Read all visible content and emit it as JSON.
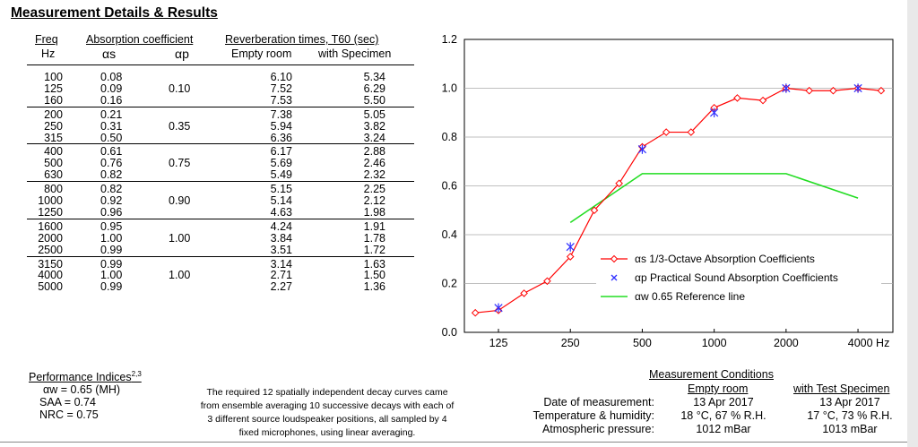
{
  "title": "Measurement Details & Results",
  "table": {
    "header_freq": "Freq",
    "header_freq_unit": "Hz",
    "header_abs": "Absorption coefficient",
    "header_as": "αs",
    "header_ap": "αp",
    "header_rev": "Reverberation times, T60 (sec)",
    "header_empty": "Empty room",
    "header_spec": "with Specimen",
    "groups": [
      {
        "ap": "0.10",
        "rows": [
          [
            "100",
            "0.08",
            "6.10",
            "5.34"
          ],
          [
            "125",
            "0.09",
            "7.52",
            "6.29"
          ],
          [
            "160",
            "0.16",
            "7.53",
            "5.50"
          ]
        ]
      },
      {
        "ap": "0.35",
        "rows": [
          [
            "200",
            "0.21",
            "7.38",
            "5.05"
          ],
          [
            "250",
            "0.31",
            "5.94",
            "3.82"
          ],
          [
            "315",
            "0.50",
            "6.36",
            "3.24"
          ]
        ]
      },
      {
        "ap": "0.75",
        "rows": [
          [
            "400",
            "0.61",
            "6.17",
            "2.88"
          ],
          [
            "500",
            "0.76",
            "5.69",
            "2.46"
          ],
          [
            "630",
            "0.82",
            "5.49",
            "2.32"
          ]
        ]
      },
      {
        "ap": "0.90",
        "rows": [
          [
            "800",
            "0.82",
            "5.15",
            "2.25"
          ],
          [
            "1000",
            "0.92",
            "5.14",
            "2.12"
          ],
          [
            "1250",
            "0.96",
            "4.63",
            "1.98"
          ]
        ]
      },
      {
        "ap": "1.00",
        "rows": [
          [
            "1600",
            "0.95",
            "4.24",
            "1.91"
          ],
          [
            "2000",
            "1.00",
            "3.84",
            "1.78"
          ],
          [
            "2500",
            "0.99",
            "3.51",
            "1.72"
          ]
        ]
      },
      {
        "ap": "1.00",
        "rows": [
          [
            "3150",
            "0.99",
            "3.14",
            "1.63"
          ],
          [
            "4000",
            "1.00",
            "2.71",
            "1.50"
          ],
          [
            "5000",
            "0.99",
            "2.27",
            "1.36"
          ]
        ]
      }
    ]
  },
  "performance": {
    "title": "Performance Indices",
    "title_sup": "2,3",
    "aw": "αw = 0.65 (MH)",
    "saa": "SAA = 0.74",
    "nrc": "NRC = 0.75"
  },
  "note": {
    "lines": [
      "The required 12 spatially independent decay curves came",
      "from ensemble averaging 10 successive decays with each of",
      "3 different source loudspeaker positions, all sampled by 4",
      "fixed microphones, using linear averaging."
    ]
  },
  "conditions": {
    "title": "Measurement Conditions",
    "col_empty": "Empty room",
    "col_spec": "with Test Specimen",
    "rows": [
      {
        "label": "Date of measurement:",
        "empty": "13 Apr 2017",
        "spec": "13 Apr 2017"
      },
      {
        "label": "Temperature & humidity:",
        "empty": "18 °C, 67 % R.H.",
        "spec": "17 °C, 73 % R.H."
      },
      {
        "label": "Atmospheric pressure:",
        "empty": "1012 mBar",
        "spec": "1013 mBar"
      }
    ]
  },
  "chart_data": {
    "type": "line",
    "xscale": "log",
    "ylim": [
      0.0,
      1.2
    ],
    "yticks": [
      "0.0",
      "0.2",
      "0.4",
      "0.6",
      "0.8",
      "1.0",
      "1.2"
    ],
    "ytick_values": [
      0.0,
      0.2,
      0.4,
      0.6,
      0.8,
      1.0,
      1.2
    ],
    "xticks": [
      "125",
      "250",
      "500",
      "1000",
      "2000",
      "4000 Hz"
    ],
    "xtick_values": [
      125,
      250,
      500,
      1000,
      2000,
      4000
    ],
    "series": [
      {
        "name": "αs 1/3-Octave Absorption Coefficients",
        "color": "#ff0000",
        "marker": "diamond",
        "x": [
          100,
          125,
          160,
          200,
          250,
          315,
          400,
          500,
          630,
          800,
          1000,
          1250,
          1600,
          2000,
          2500,
          3150,
          4000,
          5000
        ],
        "y": [
          0.08,
          0.09,
          0.16,
          0.21,
          0.31,
          0.5,
          0.61,
          0.76,
          0.82,
          0.82,
          0.92,
          0.96,
          0.95,
          1.0,
          0.99,
          0.99,
          1.0,
          0.99
        ]
      },
      {
        "name": "αp Practical Sound Absorption Coefficients",
        "color": "#3030ff",
        "marker": "x",
        "x": [
          125,
          250,
          500,
          1000,
          2000,
          4000
        ],
        "y": [
          0.1,
          0.35,
          0.75,
          0.9,
          1.0,
          1.0
        ]
      },
      {
        "name": "αw 0.65 Reference line",
        "color": "#22dd22",
        "marker": "none",
        "x": [
          250,
          500,
          2000,
          4000
        ],
        "y": [
          0.45,
          0.65,
          0.65,
          0.55
        ]
      }
    ],
    "legend_position": "bottom-right"
  }
}
